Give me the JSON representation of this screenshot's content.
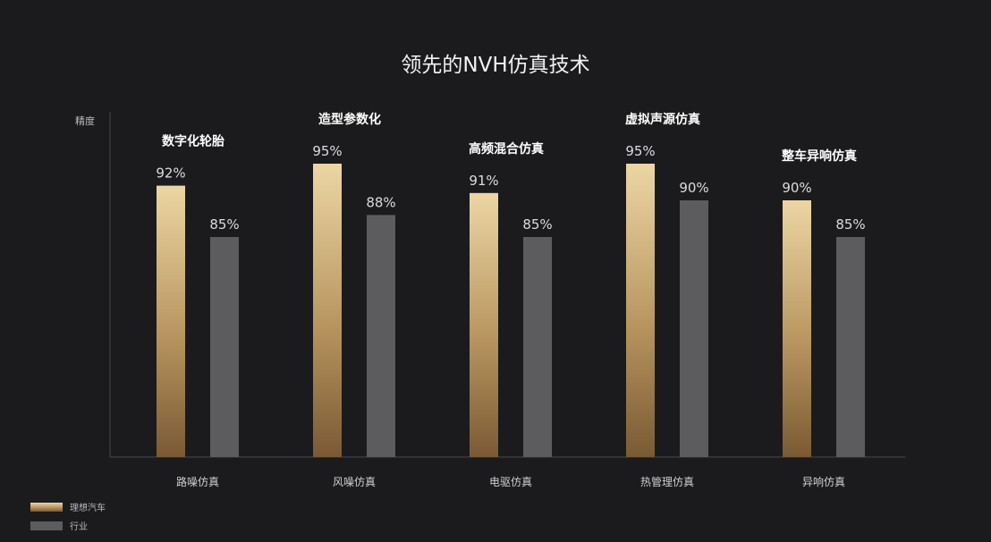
{
  "chart_data": {
    "type": "bar",
    "title": "领先的NVH仿真技术",
    "ylabel": "精度",
    "xlabel": "",
    "categories": [
      "路噪仿真",
      "风噪仿真",
      "电驱仿真",
      "热管理仿真",
      "异响仿真"
    ],
    "annotations": [
      "数字化轮胎",
      "造型参数化",
      "高频混合仿真",
      "虚拟声源仿真",
      "整车异响仿真"
    ],
    "series": [
      {
        "name": "理想汽车",
        "values": [
          92,
          95,
          91,
          95,
          90
        ],
        "labels": [
          "92%",
          "95%",
          "91%",
          "95%",
          "90%"
        ],
        "color": "#c8a96b"
      },
      {
        "name": "行业",
        "values": [
          85,
          88,
          85,
          90,
          85
        ],
        "labels": [
          "85%",
          "88%",
          "85%",
          "90%",
          "85%"
        ],
        "color": "#5c5c5e"
      }
    ],
    "ylim": [
      55,
      100
    ],
    "grid": false,
    "legend_position": "bottom-left"
  }
}
